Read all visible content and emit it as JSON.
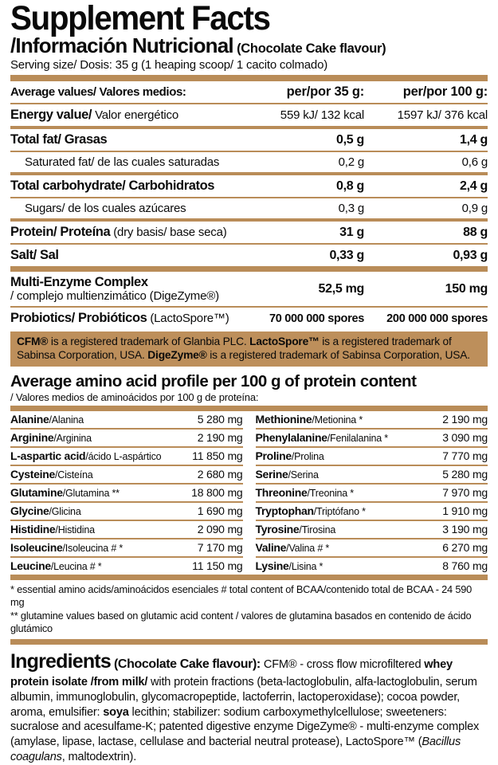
{
  "header": {
    "title": "Supplement Facts",
    "subtitle": "/Información Nutricional",
    "flavour_note": " (Chocolate Cake flavour)",
    "serving": "Serving size/ Dosis: 35 g (1 heaping scoop/ 1 cacito colmado)"
  },
  "colors": {
    "accent": "#b98c58",
    "box_bg": "#bd8f5b",
    "text": "#0a0a0a"
  },
  "nutrition": {
    "columns": {
      "label": "Average values/ Valores medios:",
      "per35": "per/por 35 g:",
      "per100": "per/por 100 g:"
    },
    "rows": [
      {
        "bold": "Energy value/",
        "rest": " Valor energético",
        "per35": "559 kJ/ 132 kcal",
        "per100": "1597 kJ/ 376 kcal"
      },
      {
        "bold": "Total fat/ Grasas",
        "rest": "",
        "per35": "0,5 g",
        "per100": "1,4 g"
      },
      {
        "bold": "",
        "rest": "Saturated fat/ de las cuales saturadas",
        "per35": "0,2 g",
        "per100": "0,6 g"
      },
      {
        "bold": "Total carbohydrate/ Carbohidratos",
        "rest": "",
        "per35": "0,8 g",
        "per100": "2,4 g"
      },
      {
        "bold": "",
        "rest": "Sugars/ de los cuales azúcares",
        "per35": "0,3 g",
        "per100": "0,9 g"
      },
      {
        "bold": "Protein/ Proteína",
        "rest": " (dry basis/ base seca)",
        "per35": "31 g",
        "per100": "88 g"
      },
      {
        "bold": "Salt/ Sal",
        "rest": "",
        "per35": "0,33 g",
        "per100": "0,93 g"
      }
    ],
    "enzyme": {
      "bold": "Multi-Enzyme Complex",
      "rest": "/ complejo multienzimático (DigeZyme®)",
      "per35": "52,5 mg",
      "per100": "150 mg"
    },
    "probiotics": {
      "bold": "Probiotics/ Probióticos",
      "rest": " (LactoSpore™)",
      "per35": "70 000 000 spores",
      "per100": "200 000 000 spores"
    }
  },
  "trademark": {
    "seg0": "CFM®",
    "seg1": " is a registered trademark of Glanbia PLC. ",
    "seg2": "LactoSpore™",
    "seg3": " is a registered trademark of Sabinsa Corporation, USA. ",
    "seg4": "DigeZyme®",
    "seg5": " is a registered trademark of Sabinsa Corporation, USA."
  },
  "amino": {
    "title": "Average amino acid profile per 100 g of protein content",
    "subtitle": "/ Valores medios de aminoácidos por 100 g de proteína:",
    "left": [
      {
        "en": "Alanine",
        "rest": "/Alanina",
        "value": "5 280 mg"
      },
      {
        "en": "Arginine",
        "rest": "/Arginina",
        "value": "2 190 mg"
      },
      {
        "en": "L-aspartic acid",
        "rest": "/ácido L-aspártico",
        "value": "11 850 mg"
      },
      {
        "en": "Cysteine",
        "rest": "/Cisteína",
        "value": "2 680 mg"
      },
      {
        "en": "Glutamine",
        "rest": "/Glutamina **",
        "value": "18 800 mg"
      },
      {
        "en": "Glycine",
        "rest": "/Glicina",
        "value": "1 690 mg"
      },
      {
        "en": "Histidine",
        "rest": "/Histidina",
        "value": "2 090 mg"
      },
      {
        "en": "Isoleucine",
        "rest": "/Isoleucina # *",
        "value": "7 170 mg"
      },
      {
        "en": "Leucine",
        "rest": "/Leucina # *",
        "value": "11 150 mg"
      }
    ],
    "right": [
      {
        "en": "Methionine",
        "rest": "/Metionina *",
        "value": "2 190 mg"
      },
      {
        "en": "Phenylalanine",
        "rest": "/Fenilalanina *",
        "value": "3 090 mg"
      },
      {
        "en": "Proline",
        "rest": "/Prolina",
        "value": "7 770 mg"
      },
      {
        "en": "Serine",
        "rest": "/Serina",
        "value": "5 280 mg"
      },
      {
        "en": "Threonine",
        "rest": "/Treonina *",
        "value": "7 970 mg"
      },
      {
        "en": "Tryptophan",
        "rest": "/Triptófano *",
        "value": "1 910 mg"
      },
      {
        "en": "Tyrosine",
        "rest": "/Tirosina",
        "value": "3 190 mg"
      },
      {
        "en": "Valine",
        "rest": "/Valina # *",
        "value": "6 270 mg"
      },
      {
        "en": "Lysine",
        "rest": "/Lisina *",
        "value": "8 760 mg"
      }
    ]
  },
  "footnotes": {
    "line1": "*  essential amino acids/aminoácidos esenciales   # total content of BCAA/contenido total de BCAA - 24 590 mg",
    "line2": "** glutamine values based on glutamic acid content / valores de glutamina basados en contenido de ácido glutámico"
  },
  "ingredients": {
    "title": "Ingredients",
    "seg1": " (Chocolate Cake flavour): ",
    "seg2": "CFM® - cross flow microfiltered ",
    "seg3": "whey protein isolate /from milk/",
    "seg4": " with protein fractions (beta-lactoglobulin, alfa-lactoglobulin, serum albumin, immunoglobulin, glycomacropeptide, lactoferrin, lactoperoxidase); cocoa powder, aroma, emulsifier: ",
    "seg5": "soya",
    "seg6": " lecithin; stabilizer: sodium carboxymethylcellulose; sweeteners: sucralose and acesulfame-K; patented digestive enzyme DigeZyme® - multi-enzyme complex (amylase, lipase, lactase, cellulase and bacterial neutral protease), LactoSpore™ (",
    "seg7": "Bacillus coagulans",
    "seg8": ", maltodextrin)."
  }
}
